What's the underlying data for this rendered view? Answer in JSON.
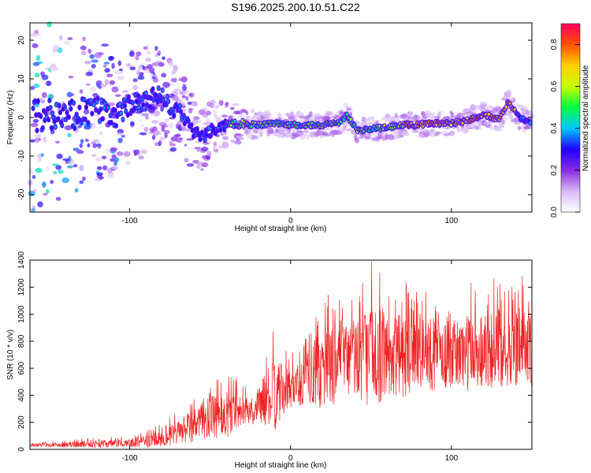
{
  "title": "S196.2025.200.10.51.C22",
  "chart_data": [
    {
      "type": "heatmap",
      "xlabel": "Height of straight line (km)",
      "ylabel": "Frequency (Hz)",
      "xlim": [
        -162,
        150
      ],
      "ylim": [
        -24.5,
        24.5
      ],
      "xticks": [
        -100,
        0,
        100
      ],
      "yticks": [
        -20,
        -10,
        0,
        10,
        20
      ],
      "colorbar": {
        "label": "Normalized spectral amplitude",
        "ticks": [
          0.0,
          0.2,
          0.4,
          0.6,
          0.8
        ],
        "range": [
          0,
          0.9
        ],
        "colors": [
          "#ffffff",
          "#d7b8f5",
          "#8a2be2",
          "#2000ff",
          "#00c8ff",
          "#00ff40",
          "#c8ff00",
          "#ffd000",
          "#ff5000",
          "#ff0060"
        ]
      },
      "ridge_frequency_hz": {
        "x": [
          -150,
          -140,
          -130,
          -120,
          -110,
          -100,
          -90,
          -82,
          -75,
          -68,
          -62,
          -55,
          -48,
          -40,
          -30,
          -20,
          -10,
          0,
          10,
          20,
          30,
          35,
          42,
          50,
          60,
          70,
          80,
          90,
          100,
          110,
          120,
          130,
          135,
          142,
          148
        ],
        "y": [
          1,
          0,
          1.5,
          2,
          0,
          3,
          4,
          6,
          3,
          1,
          -3,
          -5,
          -3,
          -2,
          -1.5,
          -2,
          -1.5,
          -2,
          -2,
          -2,
          -1.5,
          0.5,
          -3.5,
          -3,
          -2.5,
          -2,
          -1.8,
          -1.5,
          -1.5,
          -0.8,
          0.8,
          -0.5,
          4,
          0,
          -1
        ]
      },
      "peak_amplitude_region_x_km": [
        70,
        140
      ]
    },
    {
      "type": "line",
      "xlabel": "Height of straight line (km)",
      "ylabel": "SNR (10 * v/v)",
      "xlim": [
        -162,
        150
      ],
      "ylim": [
        0,
        1400
      ],
      "xticks": [
        -100,
        0,
        100
      ],
      "yticks": [
        0,
        200,
        400,
        600,
        800,
        1000,
        1200,
        1400
      ],
      "color": "#ee2222",
      "envelope": {
        "x": [
          -162,
          -140,
          -120,
          -100,
          -90,
          -80,
          -70,
          -60,
          -50,
          -40,
          -30,
          -22,
          -20,
          -10,
          0,
          10,
          20,
          30,
          40,
          50,
          60,
          70,
          80,
          90,
          100,
          110,
          120,
          130,
          140,
          150
        ],
        "mean": [
          30,
          35,
          40,
          45,
          60,
          80,
          120,
          180,
          230,
          260,
          300,
          260,
          350,
          400,
          450,
          520,
          600,
          650,
          680,
          700,
          700,
          690,
          700,
          700,
          700,
          720,
          740,
          750,
          760,
          760
        ],
        "max": [
          50,
          70,
          90,
          100,
          140,
          200,
          280,
          420,
          520,
          600,
          500,
          400,
          600,
          900,
          700,
          900,
          1150,
          1200,
          1250,
          1400,
          1300,
          1250,
          1200,
          1200,
          1150,
          1250,
          1280,
          1280,
          1290,
          1300
        ]
      }
    }
  ]
}
